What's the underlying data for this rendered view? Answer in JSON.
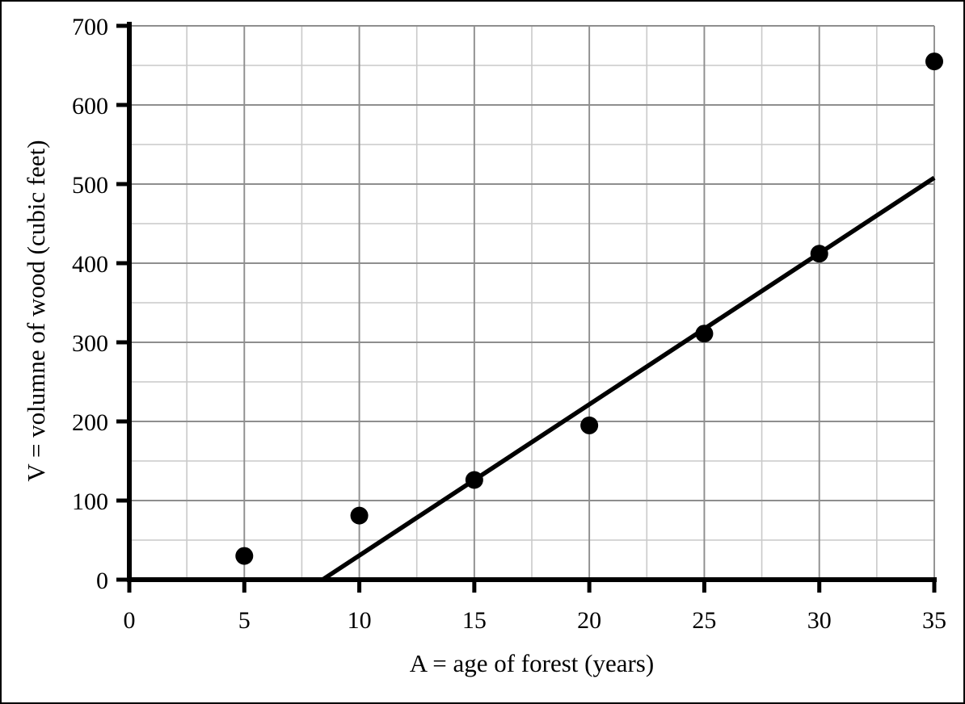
{
  "figure": {
    "background_color": "#ffffff",
    "frame_color": "#000000"
  },
  "chart_data": {
    "type": "scatter",
    "title": "",
    "xlabel": "A = age of forest (years)",
    "ylabel": "V = volumne of wood (cubic feet)",
    "xlim": [
      0,
      35
    ],
    "ylim": [
      0,
      700
    ],
    "x_major_step": 5,
    "y_major_step": 100,
    "x_minor_step": 2.5,
    "y_minor_step": 50,
    "x_tick_labels": [
      "0",
      "5",
      "10",
      "15",
      "20",
      "25",
      "30",
      "35"
    ],
    "y_tick_labels": [
      "0",
      "100",
      "200",
      "300",
      "400",
      "500",
      "600",
      "700"
    ],
    "grid": true,
    "legend_position": "none",
    "series": [
      {
        "name": "observed-volume",
        "type": "scatter",
        "marker": "filled-circle",
        "color": "#000000",
        "points": [
          {
            "x": 5,
            "y": 30
          },
          {
            "x": 10,
            "y": 81
          },
          {
            "x": 15,
            "y": 126
          },
          {
            "x": 20,
            "y": 195
          },
          {
            "x": 25,
            "y": 311
          },
          {
            "x": 30,
            "y": 412
          },
          {
            "x": 35,
            "y": 655
          }
        ]
      },
      {
        "name": "linear-trend-line",
        "type": "line",
        "color": "#000000",
        "points": [
          {
            "x": 8.4,
            "y": 0
          },
          {
            "x": 35,
            "y": 508
          }
        ]
      }
    ],
    "colors": {
      "axis": "#000000",
      "major_gridline": "#8e8e8e",
      "minor_gridline": "#c9c9c9",
      "marker": "#000000",
      "trend_line": "#000000",
      "text": "#000000"
    }
  }
}
